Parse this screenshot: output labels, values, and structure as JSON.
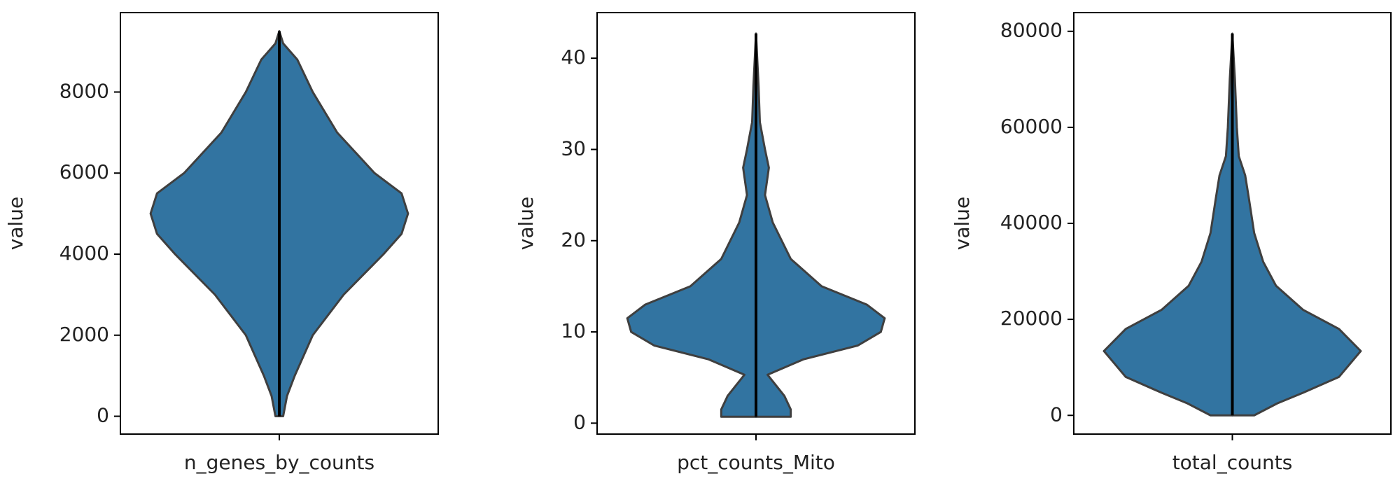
{
  "chart_data": [
    {
      "type": "violin",
      "ylabel": "value",
      "categories": [
        "n_genes_by_counts"
      ],
      "color": "#3274a1",
      "ylim": [
        -440,
        9960
      ],
      "yticks": [
        0,
        2000,
        4000,
        6000,
        8000
      ],
      "density_y": [
        0,
        0,
        500,
        1000,
        2000,
        3000,
        4000,
        4500,
        5000,
        5500,
        6000,
        7000,
        8000,
        8800,
        9200,
        9500
      ],
      "density": [
        0,
        0.03,
        0.06,
        0.12,
        0.26,
        0.5,
        0.81,
        0.95,
        1,
        0.95,
        0.74,
        0.45,
        0.26,
        0.14,
        0.03,
        0
      ],
      "min": 0,
      "max": 9500
    },
    {
      "type": "violin",
      "ylabel": "value",
      "categories": [
        "pct_counts_Mito"
      ],
      "color": "#3274a1",
      "ylim": [
        -1.2,
        45
      ],
      "yticks": [
        0,
        10,
        20,
        30,
        40
      ],
      "density_y": [
        0.7,
        0.7,
        1.5,
        3,
        5.3,
        7,
        8.5,
        10,
        11.5,
        13,
        15,
        18,
        20,
        22,
        25,
        28,
        30,
        33,
        37,
        42.7
      ],
      "density": [
        0,
        0.27,
        0.27,
        0.22,
        0.09,
        0.37,
        0.79,
        0.97,
        1,
        0.86,
        0.51,
        0.27,
        0.2,
        0.13,
        0.07,
        0.1,
        0.07,
        0.03,
        0.02,
        0
      ],
      "min": 0.7,
      "max": 42.7
    },
    {
      "type": "violin",
      "ylabel": "value",
      "categories": [
        "total_counts"
      ],
      "color": "#3274a1",
      "ylim": [
        -3900,
        83900
      ],
      "yticks": [
        0,
        20000,
        40000,
        60000,
        80000
      ],
      "density_y": [
        0,
        0,
        2500,
        4700,
        8000,
        13400,
        18000,
        22000,
        27000,
        32000,
        38000,
        45000,
        50000,
        54000,
        60000,
        70000,
        79500
      ],
      "density": [
        0,
        0.17,
        0.35,
        0.55,
        0.83,
        1,
        0.83,
        0.55,
        0.34,
        0.24,
        0.17,
        0.13,
        0.1,
        0.05,
        0.035,
        0.02,
        0
      ],
      "min": 0,
      "max": 79500
    }
  ]
}
